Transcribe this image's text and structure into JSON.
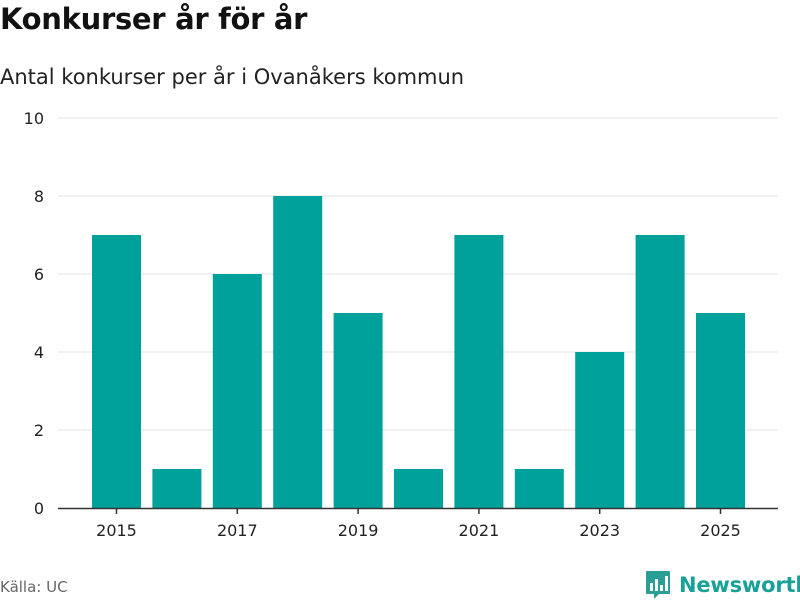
{
  "title": "Konkurser år för år",
  "subtitle": "Antal konkurser per år i Ovanåkers kommun",
  "source": "Källa: UC",
  "brand": {
    "name": "Newsworthy",
    "icon": "bar-chart-logo-icon",
    "color": "#17a198"
  },
  "colors": {
    "bar": "#00a19a",
    "grid": "#e3e3e3",
    "axis": "#333333"
  },
  "chart_data": {
    "type": "bar",
    "categories": [
      "2015",
      "2016",
      "2017",
      "2018",
      "2019",
      "2020",
      "2021",
      "2022",
      "2023",
      "2024",
      "2025"
    ],
    "values": [
      7,
      1,
      6,
      8,
      5,
      1,
      7,
      1,
      4,
      7,
      5
    ],
    "x_tick_labels": [
      "2015",
      "2017",
      "2019",
      "2021",
      "2023",
      "2025"
    ],
    "y_ticks": [
      0,
      2,
      4,
      6,
      8,
      10
    ],
    "ylim": [
      0,
      10
    ],
    "xlabel": "",
    "ylabel": "",
    "grid": true,
    "legend": "none"
  }
}
